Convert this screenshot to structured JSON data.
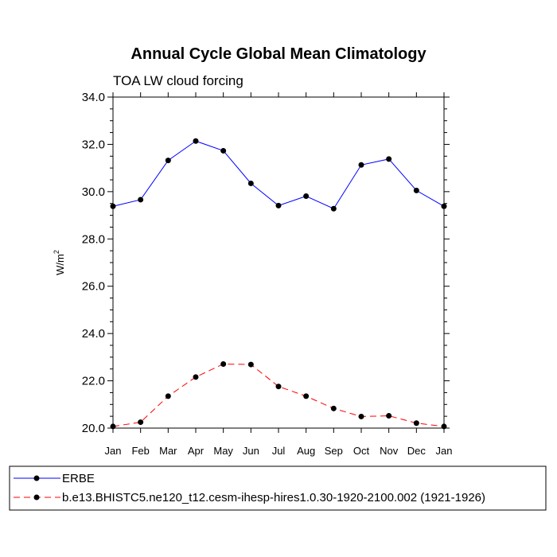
{
  "chart_data": {
    "type": "line",
    "title": "Annual Cycle Global Mean Climatology",
    "subtitle": "TOA LW cloud forcing",
    "ylabel": "W/m",
    "ylabel_superscript": "2",
    "categories": [
      "Jan",
      "Feb",
      "Mar",
      "Apr",
      "May",
      "Jun",
      "Jul",
      "Aug",
      "Sep",
      "Oct",
      "Nov",
      "Dec",
      "Jan"
    ],
    "ylim": [
      20.0,
      34.0
    ],
    "yticks": [
      "20.0",
      "22.0",
      "24.0",
      "26.0",
      "28.0",
      "30.0",
      "32.0",
      "34.0"
    ],
    "series": [
      {
        "name": "ERBE",
        "color": "#0000ff",
        "dash": "solid",
        "values": [
          29.38,
          29.66,
          31.32,
          32.14,
          31.73,
          30.35,
          29.41,
          29.81,
          29.28,
          31.13,
          31.38,
          30.05,
          29.38
        ]
      },
      {
        "name": "b.e13.BHISTC5.ne120_t12.cesm-ihesp-hires1.0.30-1920-2100.002 (1921-1926)",
        "color": "#ff0000",
        "dash": "dashed",
        "values": [
          20.07,
          20.25,
          21.35,
          22.16,
          22.71,
          22.69,
          21.76,
          21.35,
          20.83,
          20.49,
          20.52,
          20.21,
          20.07
        ]
      }
    ]
  }
}
